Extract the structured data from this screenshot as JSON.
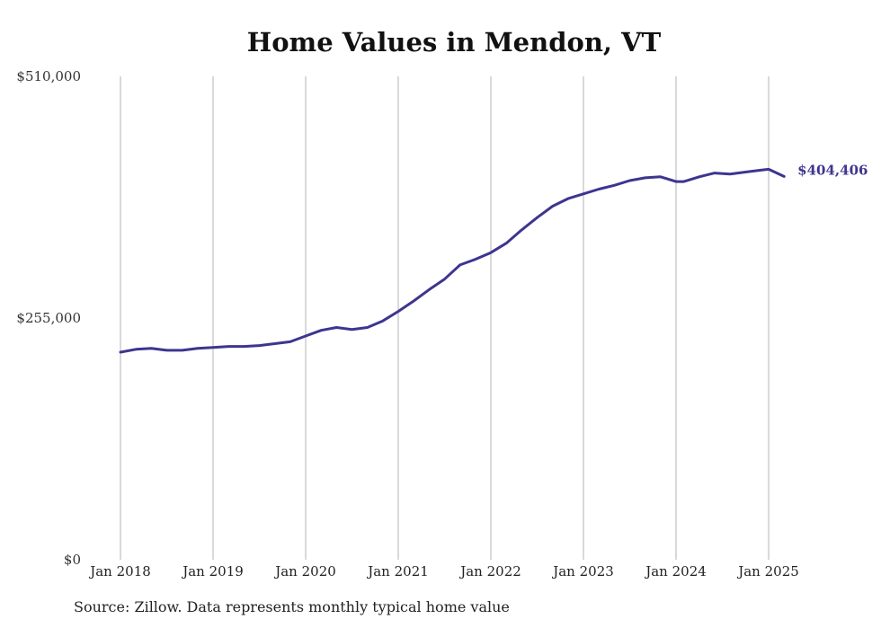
{
  "title": "Home Values in Mendon, VT",
  "source": "Source: Zillow. Data represents monthly typical home value",
  "chart_data": {
    "type": "line",
    "title": "Home Values in Mendon, VT",
    "xlabel": "",
    "ylabel": "",
    "ylim": [
      0,
      510000
    ],
    "y_ticks": [
      {
        "value": 0,
        "label": "$0"
      },
      {
        "value": 255000,
        "label": "$255,000"
      },
      {
        "value": 510000,
        "label": "$510,000"
      }
    ],
    "x_ticks": [
      {
        "value": 2018,
        "label": "Jan 2018"
      },
      {
        "value": 2019,
        "label": "Jan 2019"
      },
      {
        "value": 2020,
        "label": "Jan 2020"
      },
      {
        "value": 2021,
        "label": "Jan 2021"
      },
      {
        "value": 2022,
        "label": "Jan 2022"
      },
      {
        "value": 2023,
        "label": "Jan 2023"
      },
      {
        "value": 2024,
        "label": "Jan 2024"
      },
      {
        "value": 2025,
        "label": "Jan 2025"
      }
    ],
    "grid": "vertical",
    "line_color": "#3d3590",
    "end_label": "$404,406",
    "series": [
      {
        "x": [
          2018.0,
          2018.1667,
          2018.3333,
          2018.5,
          2018.6667,
          2018.8333,
          2019.0,
          2019.1667,
          2019.3333,
          2019.5,
          2019.6667,
          2019.8333,
          2020.0,
          2020.1667,
          2020.3333,
          2020.5,
          2020.6667,
          2020.8333,
          2021.0,
          2021.1667,
          2021.3333,
          2021.5,
          2021.6667,
          2021.8333,
          2022.0,
          2022.1667,
          2022.3333,
          2022.5,
          2022.6667,
          2022.8333,
          2023.0,
          2023.1667,
          2023.3333,
          2023.5,
          2023.6667,
          2023.8333,
          2024.0,
          2024.0833,
          2024.25,
          2024.4167,
          2024.5833,
          2024.75,
          2024.9167,
          2025.0,
          2025.1667
        ],
        "y": [
          219000,
          222000,
          223000,
          221000,
          221000,
          223000,
          224000,
          225000,
          225000,
          226000,
          228000,
          230000,
          236000,
          242000,
          245000,
          243000,
          245000,
          252000,
          262000,
          273000,
          285000,
          296000,
          311000,
          317000,
          324000,
          334000,
          348000,
          361000,
          373000,
          381000,
          386000,
          391000,
          395000,
          400000,
          403000,
          404000,
          399000,
          399000,
          404000,
          408000,
          407000,
          409000,
          411000,
          412000,
          404406
        ]
      }
    ]
  }
}
